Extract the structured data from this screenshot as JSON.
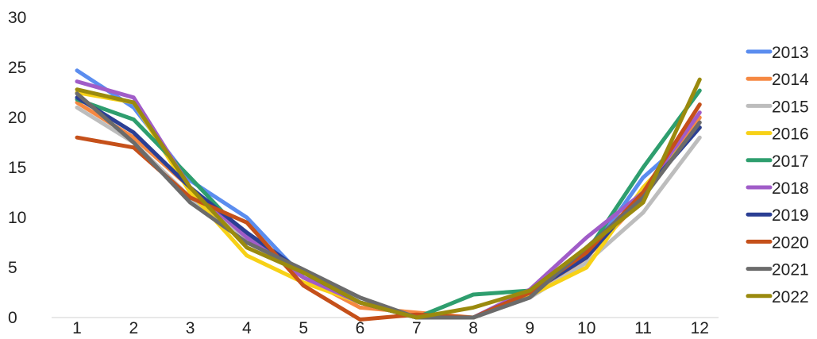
{
  "chart_data": {
    "type": "line",
    "title": "",
    "xlabel": "",
    "ylabel": "",
    "x": [
      1,
      2,
      3,
      4,
      5,
      6,
      7,
      8,
      9,
      10,
      11,
      12
    ],
    "x_tick_labels": [
      "1",
      "2",
      "3",
      "4",
      "5",
      "6",
      "7",
      "8",
      "9",
      "10",
      "11",
      "12"
    ],
    "ylim": [
      0,
      30
    ],
    "y_ticks": [
      0,
      5,
      10,
      15,
      20,
      25,
      30
    ],
    "y_tick_labels": [
      "0",
      "5",
      "10",
      "15",
      "20",
      "25",
      "30"
    ],
    "grid": "baseline only",
    "legend_position": "right",
    "series": [
      {
        "name": "2013",
        "color": "#5B8DEF",
        "values": [
          24.7,
          21.0,
          13.7,
          10.0,
          4.0,
          1.5,
          0.0,
          0.0,
          2.3,
          6.0,
          14.0,
          19.0
        ]
      },
      {
        "name": "2014",
        "color": "#F58842",
        "values": [
          21.5,
          18.0,
          13.0,
          8.0,
          4.0,
          1.0,
          0.5,
          0.0,
          2.2,
          6.0,
          12.0,
          20.0
        ]
      },
      {
        "name": "2015",
        "color": "#BDBDBD",
        "values": [
          21.0,
          17.5,
          12.0,
          8.0,
          4.5,
          2.0,
          0.0,
          0.0,
          2.0,
          5.5,
          10.5,
          18.0
        ]
      },
      {
        "name": "2016",
        "color": "#F7D117",
        "values": [
          22.5,
          21.5,
          12.5,
          6.2,
          3.5,
          1.5,
          0.0,
          0.0,
          2.2,
          5.0,
          13.0,
          19.0
        ]
      },
      {
        "name": "2017",
        "color": "#2E9E6E",
        "values": [
          21.8,
          19.8,
          14.0,
          8.0,
          4.5,
          1.5,
          0.0,
          2.3,
          2.7,
          6.5,
          15.0,
          22.7
        ]
      },
      {
        "name": "2018",
        "color": "#A05CC8",
        "values": [
          23.6,
          22.0,
          13.0,
          8.0,
          4.0,
          1.5,
          0.0,
          0.0,
          2.8,
          8.0,
          12.5,
          20.5
        ]
      },
      {
        "name": "2019",
        "color": "#2B3F94",
        "values": [
          22.0,
          18.5,
          13.0,
          8.5,
          4.5,
          1.5,
          0.0,
          0.0,
          2.5,
          6.0,
          12.5,
          19.0
        ]
      },
      {
        "name": "2020",
        "color": "#C5501A",
        "values": [
          18.0,
          17.0,
          12.0,
          9.5,
          3.2,
          -0.2,
          0.3,
          0.0,
          2.5,
          6.5,
          12.5,
          21.3
        ]
      },
      {
        "name": "2021",
        "color": "#6B6B6B",
        "values": [
          22.4,
          17.5,
          11.5,
          7.5,
          4.8,
          2.0,
          0.0,
          0.0,
          2.0,
          7.0,
          12.0,
          19.5
        ]
      },
      {
        "name": "2022",
        "color": "#9A8A0E",
        "values": [
          22.8,
          21.5,
          13.0,
          7.0,
          4.5,
          1.5,
          0.0,
          1.0,
          2.7,
          7.0,
          11.5,
          23.8
        ]
      }
    ]
  }
}
